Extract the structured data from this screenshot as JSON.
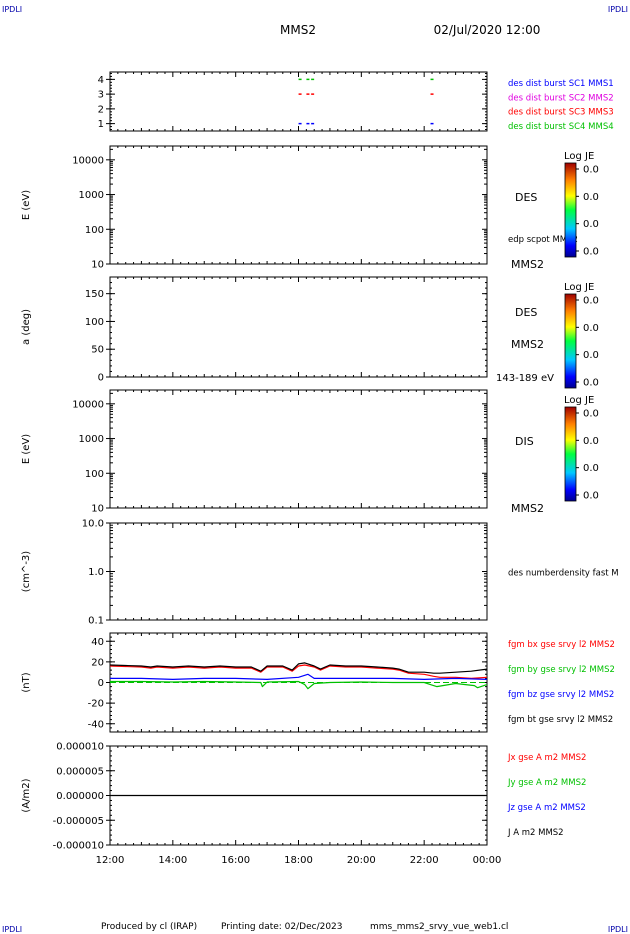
{
  "header": {
    "title": "MMS2",
    "datetime": "02/Jul/2020 12:00",
    "corner_label": "IPDLI"
  },
  "footer": {
    "produced_by": "Produced by cl (IRAP)",
    "printing_date": "Printing date: 02/Dec/2023",
    "filename": "mms_mms2_srvy_vue_web1.cl"
  },
  "time_axis": {
    "start_hours": 12,
    "end_hours": 24,
    "tick_labels": [
      "12:00",
      "14:00",
      "16:00",
      "18:00",
      "20:00",
      "22:00",
      "00:00"
    ]
  },
  "colors": {
    "red": "#ff0000",
    "green": "#00c000",
    "blue": "#0000ff",
    "magenta": "#e000e0",
    "black": "#000000"
  },
  "chart_data": [
    {
      "type": "scatter",
      "id": "burst",
      "ylim": [
        0.5,
        4.5
      ],
      "yticks": [
        1,
        2,
        3,
        4
      ],
      "ytick_labels": [
        "1",
        "2",
        "3",
        "4"
      ],
      "legend": [
        {
          "text": "des dist burst SC1 MMS1",
          "color": "#0000ff"
        },
        {
          "text": "des dist burst SC2 MMS2",
          "color": "#e000e0"
        },
        {
          "text": "des dist burst SC3 MMS3",
          "color": "#ff0000"
        },
        {
          "text": "des dist burst SC4 MMS4",
          "color": "#00c000"
        }
      ],
      "series": [
        {
          "level": 4,
          "color": "#00c000",
          "times": [
            18.05,
            18.3,
            18.45,
            22.25
          ]
        },
        {
          "level": 3,
          "color": "#ff0000",
          "times": [
            18.05,
            18.3,
            18.45,
            22.25
          ]
        },
        {
          "level": 1,
          "color": "#0000ff",
          "times": [
            18.05,
            18.3,
            18.45,
            22.25
          ]
        }
      ]
    },
    {
      "type": "heatmap",
      "id": "des_energy",
      "ylabel": "E (eV)",
      "log": true,
      "ylim": [
        10,
        25000
      ],
      "yticks": [
        10,
        100,
        1000,
        10000
      ],
      "ytick_labels": [
        "10",
        "100",
        "1000",
        "10000"
      ],
      "side_label": "DES",
      "bottom_label": "MMS2",
      "overlay_label": "edp scpot MMS2",
      "colorbar": {
        "title": "Log JE",
        "labels": [
          "0.0",
          "0.0",
          "0.0",
          "0.0"
        ]
      }
    },
    {
      "type": "heatmap",
      "id": "des_pitch",
      "ylabel": "a (deg)",
      "ylim": [
        0,
        180
      ],
      "yticks": [
        0,
        50,
        100,
        150
      ],
      "ytick_labels": [
        "0",
        "50",
        "100",
        "150"
      ],
      "side_label": "DES",
      "bottom_label": "MMS2",
      "energy_label": "143-189 eV",
      "colorbar": {
        "title": "Log JE",
        "labels": [
          "0.0",
          "0.0",
          "0.0",
          "0.0"
        ]
      }
    },
    {
      "type": "heatmap",
      "id": "dis_energy",
      "ylabel": "E (eV)",
      "log": true,
      "ylim": [
        10,
        25000
      ],
      "yticks": [
        10,
        100,
        1000,
        10000
      ],
      "ytick_labels": [
        "10",
        "100",
        "1000",
        "10000"
      ],
      "side_label": "DIS",
      "bottom_label": "MMS2",
      "colorbar": {
        "title": "Log JE",
        "labels": [
          "0.0",
          "0.0",
          "0.0",
          "0.0"
        ]
      }
    },
    {
      "type": "line",
      "id": "density",
      "ylabel": "(cm^-3)",
      "log": true,
      "ylim": [
        0.1,
        10
      ],
      "yticks": [
        0.1,
        1,
        10
      ],
      "ytick_labels": [
        "0.1",
        "1.0",
        "10.0"
      ],
      "legend": [
        {
          "text": "des numberdensity fast M",
          "color": "#000000"
        }
      ]
    },
    {
      "type": "line",
      "id": "fgm",
      "ylabel": "(nT)",
      "ylim": [
        -48,
        48
      ],
      "yticks": [
        -40,
        -20,
        0,
        20,
        40
      ],
      "ytick_labels": [
        "-40",
        "-20",
        "0",
        "20",
        "40"
      ],
      "zero_line": true,
      "legend": [
        {
          "text": "fgm bx gse srvy l2 MMS2",
          "color": "#ff0000"
        },
        {
          "text": "fgm by gse srvy l2 MMS2",
          "color": "#00c000"
        },
        {
          "text": "fgm bz gse srvy l2 MMS2",
          "color": "#0000ff"
        },
        {
          "text": "fgm bt gse srvy l2 MMS2",
          "color": "#000000"
        }
      ],
      "series": [
        {
          "name": "fgm bx gse srvy l2 MMS2",
          "color": "#ff0000",
          "x": [
            12.0,
            12.5,
            13.0,
            13.3,
            13.5,
            14.0,
            14.5,
            15.0,
            15.5,
            16.0,
            16.5,
            16.8,
            17.0,
            17.5,
            17.8,
            18.0,
            18.2,
            18.5,
            18.7,
            19.0,
            19.5,
            20.0,
            20.5,
            21.0,
            21.2,
            21.5,
            22.0,
            22.3,
            22.5,
            23.0,
            23.5,
            24.0
          ],
          "y": [
            16,
            15.5,
            15,
            14,
            15,
            14,
            15,
            14,
            15,
            14,
            14,
            10,
            15,
            15,
            11,
            16,
            17,
            15,
            12,
            16,
            15,
            15,
            14,
            13,
            12,
            9,
            8,
            6,
            5,
            5,
            4,
            5
          ]
        },
        {
          "name": "fgm by gse srvy l2 MMS2",
          "color": "#00c000",
          "x": [
            12.0,
            13.0,
            14.0,
            15.0,
            16.0,
            16.8,
            16.85,
            17.0,
            18.0,
            18.2,
            18.3,
            18.5,
            19.0,
            20.0,
            21.0,
            22.0,
            22.2,
            22.4,
            23.0,
            23.6,
            23.7,
            24.0
          ],
          "y": [
            1,
            1,
            0.5,
            1,
            0.5,
            0,
            -4,
            0.5,
            1,
            -2,
            -6,
            -1,
            0,
            0.5,
            0,
            0,
            -2,
            -4,
            -1,
            -3,
            -5,
            -2
          ]
        },
        {
          "name": "fgm bz gse srvy l2 MMS2",
          "color": "#0000ff",
          "x": [
            12.0,
            13.0,
            14.0,
            15.0,
            16.0,
            17.0,
            18.0,
            18.3,
            18.5,
            19.0,
            20.0,
            21.0,
            22.0,
            23.0,
            24.0
          ],
          "y": [
            4,
            4,
            3,
            4,
            4,
            3,
            5,
            8,
            4,
            4,
            4,
            4,
            3,
            4,
            3
          ]
        },
        {
          "name": "fgm bt gse srvy l2 MMS2",
          "color": "#000000",
          "x": [
            12.0,
            12.5,
            13.0,
            13.3,
            13.5,
            14.0,
            14.5,
            15.0,
            15.5,
            16.0,
            16.5,
            16.8,
            17.0,
            17.5,
            17.8,
            18.0,
            18.2,
            18.5,
            18.7,
            19.0,
            19.5,
            20.0,
            20.5,
            21.0,
            21.2,
            21.5,
            22.0,
            22.3,
            22.5,
            23.0,
            23.5,
            24.0
          ],
          "y": [
            17,
            16.5,
            16,
            15,
            16,
            15,
            16,
            15,
            16,
            15,
            15,
            11,
            16,
            16,
            12,
            18,
            19,
            16,
            13,
            17,
            16,
            16,
            15,
            14,
            13,
            10,
            10,
            9,
            9,
            10,
            11,
            13
          ]
        }
      ]
    },
    {
      "type": "line",
      "id": "current",
      "ylabel": "(A/m2)",
      "ylim": [
        -1e-05,
        1e-05
      ],
      "yticks": [
        -1e-05,
        -5e-06,
        0,
        5e-06,
        1e-05
      ],
      "ytick_labels": [
        "-0.000010",
        "-0.000005",
        "0.000000",
        "0.000005",
        "0.000010"
      ],
      "legend": [
        {
          "text": "Jx gse A m2 MMS2",
          "color": "#ff0000"
        },
        {
          "text": "Jy gse A m2 MMS2",
          "color": "#00c000"
        },
        {
          "text": "Jz gse A m2 MMS2",
          "color": "#0000ff"
        },
        {
          "text": "J A m2 MMS2",
          "color": "#000000"
        }
      ],
      "series": [
        {
          "name": "J A m2 MMS2",
          "color": "#000000",
          "x": [
            12.0,
            24.0
          ],
          "y": [
            0,
            0
          ]
        }
      ]
    }
  ]
}
